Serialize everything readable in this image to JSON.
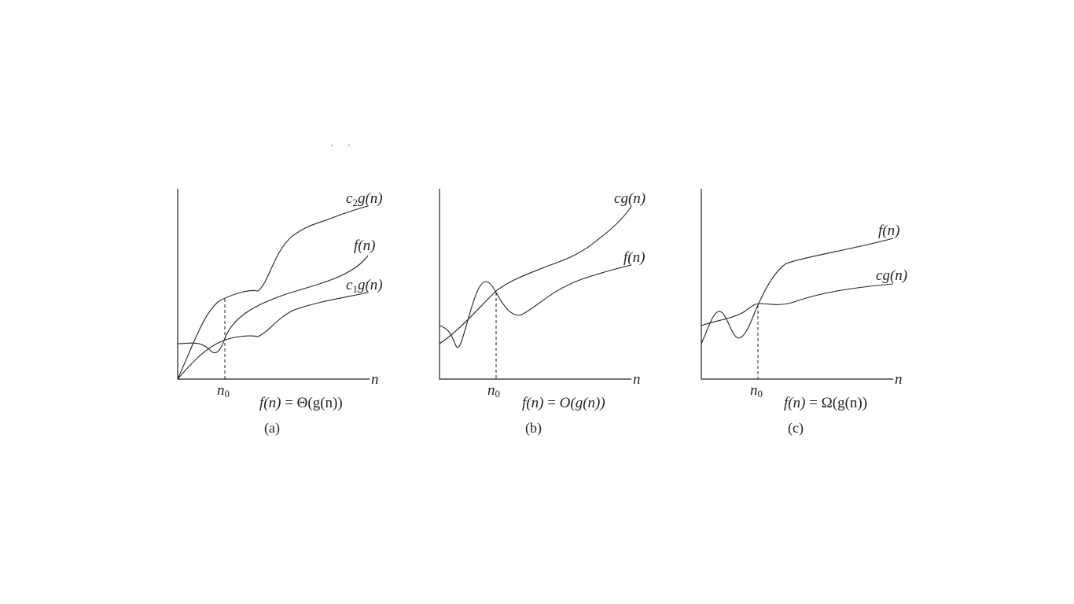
{
  "panels": [
    {
      "caption": "(a)",
      "x_axis_label": "n",
      "threshold_label": {
        "base": "n",
        "sub": "0"
      },
      "formula": {
        "lhs": "f(n)",
        "eq": " = ",
        "rhs": "Θ(g(n))"
      },
      "curve_labels": [
        {
          "coef": "c",
          "sub": "2",
          "fn": "g(n)"
        },
        {
          "coef": "",
          "sub": "",
          "fn": "f(n)"
        },
        {
          "coef": "c",
          "sub": "1",
          "fn": "g(n)"
        }
      ]
    },
    {
      "caption": "(b)",
      "x_axis_label": "n",
      "threshold_label": {
        "base": "n",
        "sub": "0"
      },
      "formula": {
        "lhs": "f(n)",
        "eq": " = ",
        "rhs": "O(g(n))"
      },
      "curve_labels": [
        {
          "coef": "c",
          "sub": "",
          "fn": "g(n)"
        },
        {
          "coef": "",
          "sub": "",
          "fn": "f(n)"
        }
      ]
    },
    {
      "caption": "(c)",
      "x_axis_label": "n",
      "threshold_label": {
        "base": "n",
        "sub": "0"
      },
      "formula": {
        "lhs": "f(n)",
        "eq": " = ",
        "rhs": "Ω(g(n))"
      },
      "curve_labels": [
        {
          "coef": "",
          "sub": "",
          "fn": "f(n)"
        },
        {
          "coef": "c",
          "sub": "",
          "fn": "g(n)"
        }
      ]
    }
  ]
}
